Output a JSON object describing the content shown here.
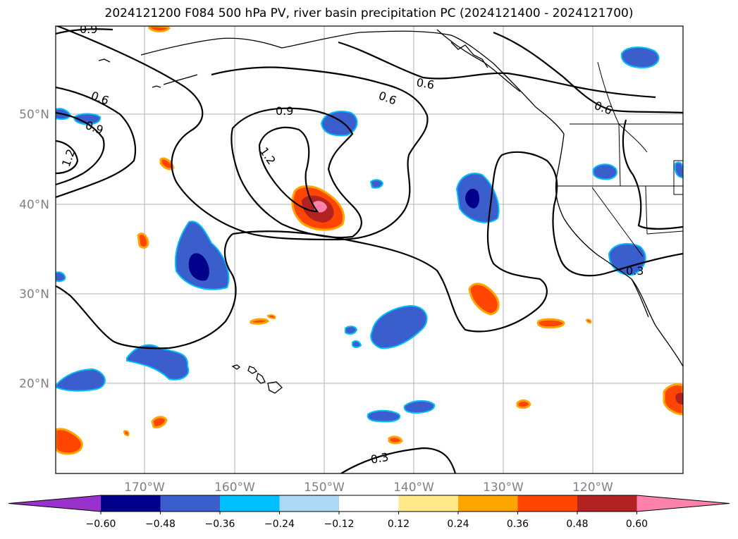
{
  "title": "2024121200 F084 500 hPa PV, river basin precipitation PC (2024121400 - 2024121700)",
  "map": {
    "lat_ticks": [
      "50°N",
      "40°N",
      "30°N",
      "20°N"
    ],
    "lon_ticks": [
      "170°W",
      "160°W",
      "150°W",
      "140°W",
      "130°W",
      "120°W"
    ],
    "contour_labels": [
      "0.9",
      "0.6",
      "0.9",
      "1.2",
      "0.9",
      "1.2",
      "0.6",
      "0.6",
      "0.6",
      "0.3",
      "0.3"
    ]
  },
  "colorbar": {
    "ticks": [
      "−0.60",
      "−0.48",
      "−0.36",
      "−0.24",
      "−0.12",
      "0.12",
      "0.24",
      "0.36",
      "0.48",
      "0.60"
    ],
    "colors": [
      "#9932cc",
      "#00008b",
      "#3a5fcd",
      "#00bfff",
      "#add8f5",
      "#ffffff",
      "#ffe98a",
      "#ffa500",
      "#ff4500",
      "#b22222",
      "#ff82ab"
    ]
  }
}
